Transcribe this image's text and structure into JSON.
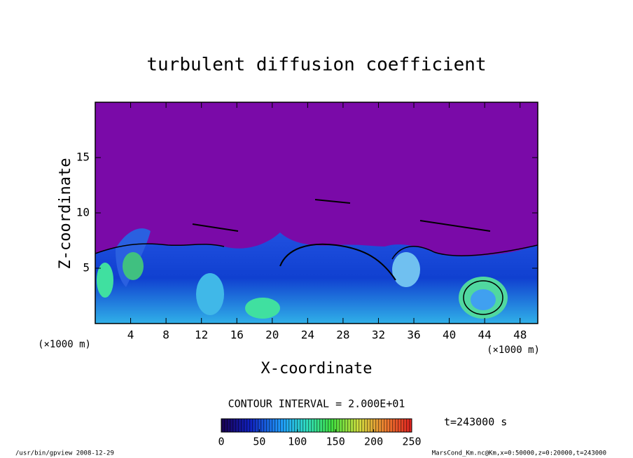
{
  "chart_data": {
    "type": "contour",
    "title": "turbulent diffusion coefficient",
    "x_label": "X-coordinate",
    "y_label": "Z-coordinate",
    "x_unit": "(×1000 m)",
    "xlim": [
      0,
      50
    ],
    "xticks": [
      4,
      8,
      12,
      16,
      20,
      24,
      28,
      32,
      36,
      40,
      44,
      48
    ],
    "ylim": [
      0,
      20
    ],
    "yticks": [
      5,
      10,
      15
    ],
    "contour_interval": "CONTOUR INTERVAL = 2.000E+01",
    "time_label": "t=243000 s",
    "colorbar": {
      "lim": [
        0,
        250
      ],
      "ticks": [
        0,
        50,
        100,
        150,
        200,
        250
      ]
    },
    "footer_left": "/usr/bin/gpview   2008-12-29",
    "footer_right": "MarsCond_Km.nc@Km,x=0:50000,z=0:20000,t=243000"
  }
}
